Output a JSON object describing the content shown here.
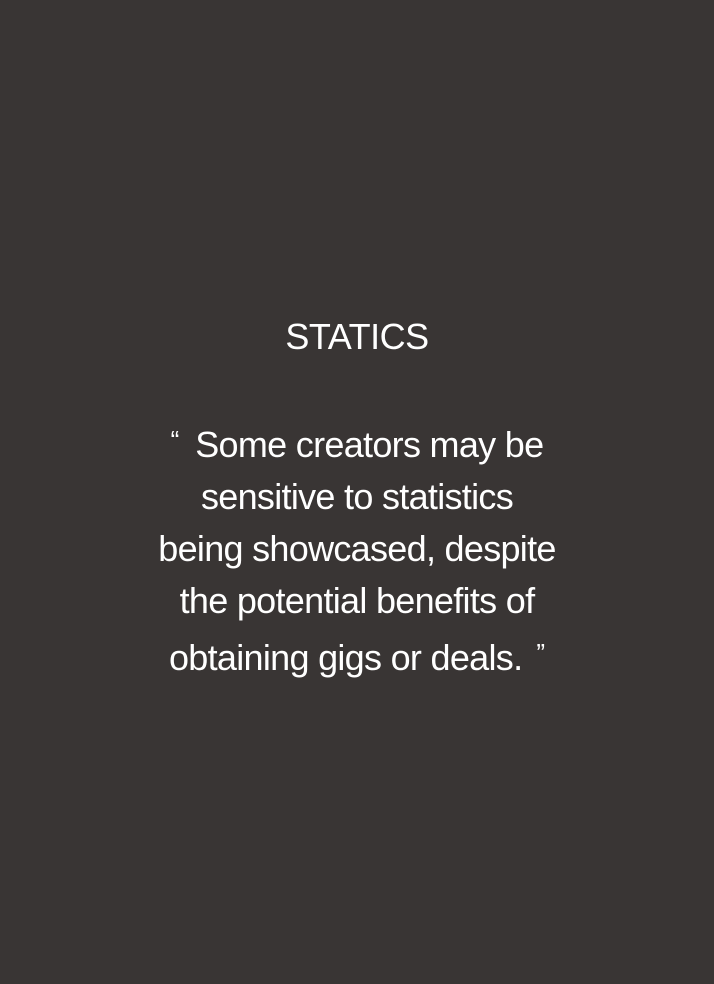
{
  "card": {
    "title": "STATICS",
    "quote": {
      "open_mark": "“",
      "close_mark": "”",
      "lines": [
        "Some creators may be",
        "sensitive to statistics",
        "being showcased, despite",
        "the potential benefits of",
        "obtaining gigs or deals."
      ]
    },
    "colors": {
      "background": "#393534",
      "text": "#ffffff"
    }
  }
}
